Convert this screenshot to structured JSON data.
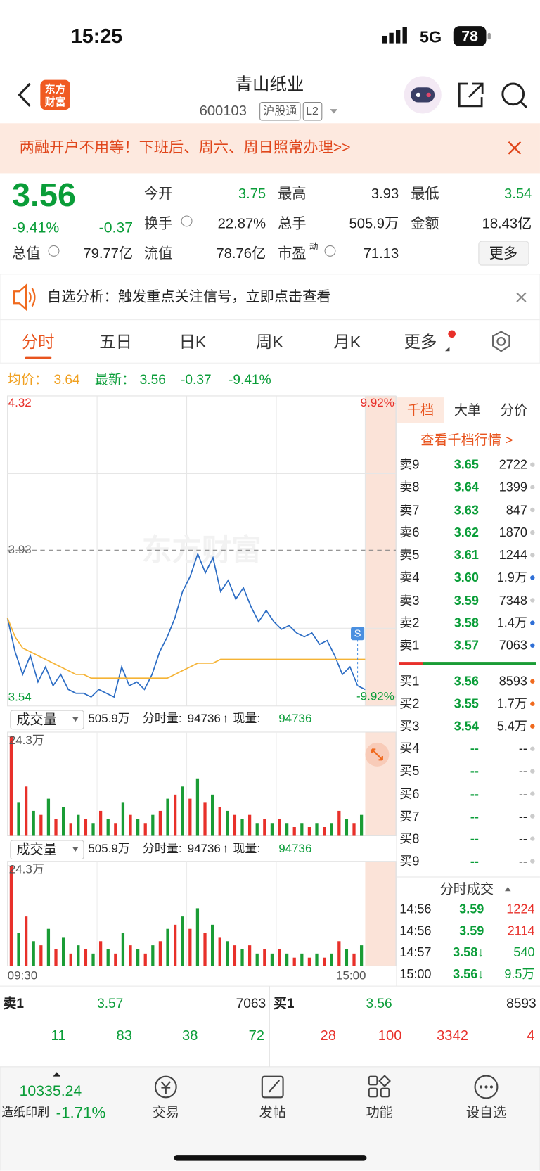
{
  "status_bar": {
    "time": "15:25",
    "network": "5G",
    "battery": "78"
  },
  "header": {
    "logo": [
      "东方",
      "财富"
    ],
    "title": "青山纸业",
    "code": "600103",
    "tags": [
      "沪股通",
      "L2"
    ]
  },
  "banner": {
    "text": "两融开户不用等！下班后、周六、周日照常办理>>"
  },
  "quote": {
    "price": "3.56",
    "change_pct": "-9.41%",
    "change": "-0.37",
    "fields": [
      {
        "label": "今开",
        "value": "3.75",
        "color": "#0a9d38"
      },
      {
        "label": "最高",
        "value": "3.93",
        "color": "#222222"
      },
      {
        "label": "最低",
        "value": "3.54",
        "color": "#0a9d38"
      },
      {
        "label": "换手",
        "value": "22.87%",
        "color": "#222222"
      },
      {
        "label": "总手",
        "value": "505.9万",
        "color": "#222222"
      },
      {
        "label": "金额",
        "value": "18.43亿",
        "color": "#222222"
      },
      {
        "label": "总值",
        "value": "79.77亿",
        "color": "#222222"
      },
      {
        "label": "流值",
        "value": "78.76亿",
        "color": "#222222"
      },
      {
        "label": "市盈",
        "sup": "动",
        "value": "71.13",
        "color": "#222222"
      }
    ],
    "more": "更多"
  },
  "notice": {
    "text": "自选分析：触发重点关注信号，立即点击查看"
  },
  "tabs": [
    "分时",
    "五日",
    "日K",
    "周K",
    "月K",
    "更多"
  ],
  "legend": {
    "avg_label": "均价：",
    "avg": "3.64",
    "latest_label": "最新：",
    "latest": "3.56",
    "change": "-0.37",
    "change_pct": "-9.41%"
  },
  "chart_data": [
    {
      "type": "line",
      "watermark": "东方财富",
      "annotation": "S",
      "ylim": [
        3.54,
        4.32
      ],
      "yticks": [
        4.32,
        3.93,
        3.54
      ],
      "y2lim": [
        -9.92,
        9.92
      ],
      "y2ticks": [
        {
          "value": 9.92,
          "label": "9.92%"
        },
        {
          "value": -9.92,
          "label": "-9.92%"
        }
      ],
      "x_labels": [
        "09:30",
        "15:00"
      ],
      "series": [
        {
          "color": "#2b6cc4",
          "values": [
            3.75,
            3.66,
            3.6,
            3.65,
            3.58,
            3.62,
            3.57,
            3.6,
            3.56,
            3.55,
            3.55,
            3.54,
            3.56,
            3.55,
            3.54,
            3.62,
            3.57,
            3.58,
            3.56,
            3.6,
            3.66,
            3.7,
            3.75,
            3.82,
            3.86,
            3.92,
            3.87,
            3.91,
            3.82,
            3.85,
            3.8,
            3.83,
            3.78,
            3.74,
            3.77,
            3.74,
            3.72,
            3.73,
            3.71,
            3.7,
            3.71,
            3.68,
            3.69,
            3.65,
            3.6,
            3.62,
            3.57,
            3.56
          ]
        },
        {
          "color": "#f5b335",
          "values": [
            3.75,
            3.7,
            3.67,
            3.66,
            3.65,
            3.64,
            3.63,
            3.62,
            3.61,
            3.6,
            3.6,
            3.59,
            3.59,
            3.59,
            3.59,
            3.59,
            3.59,
            3.59,
            3.59,
            3.59,
            3.59,
            3.59,
            3.6,
            3.61,
            3.62,
            3.63,
            3.63,
            3.63,
            3.64,
            3.64,
            3.64,
            3.64,
            3.64,
            3.64,
            3.64,
            3.64,
            3.64,
            3.64,
            3.64,
            3.64,
            3.64,
            3.64,
            3.64,
            3.64,
            3.64,
            3.64,
            3.64,
            3.64
          ]
        }
      ]
    },
    {
      "type": "bar",
      "ylim": [
        0,
        24.3
      ],
      "yticks": [
        {
          "value": 24.3,
          "label": "24.3万"
        }
      ],
      "series": [
        {
          "color": "#e8302a",
          "values": [
            24.3,
            null,
            12,
            null,
            5,
            null,
            4,
            null,
            3,
            null,
            4,
            null,
            6,
            null,
            3,
            null,
            5,
            null,
            3,
            null,
            6,
            null,
            10,
            null,
            9,
            null,
            8,
            null,
            7,
            null,
            5,
            null,
            5,
            null,
            4,
            null,
            4,
            null,
            2,
            null,
            2,
            null,
            2,
            null,
            6,
            null,
            3,
            null
          ]
        },
        {
          "color": "#1a9c35",
          "values": [
            null,
            8,
            null,
            6,
            null,
            9,
            null,
            7,
            null,
            5,
            null,
            3,
            null,
            4,
            null,
            8,
            null,
            4,
            null,
            5,
            null,
            9,
            null,
            12,
            null,
            14,
            null,
            10,
            null,
            6,
            null,
            4,
            null,
            3,
            null,
            3,
            null,
            3,
            null,
            3,
            null,
            3,
            null,
            3,
            null,
            4,
            null,
            5
          ]
        }
      ]
    }
  ],
  "volume_header": {
    "label": "成交量",
    "total": "505.9万",
    "minute_label": "分时量:",
    "minute": "94736",
    "arrow": "↑",
    "current_label": "现量:",
    "current": "94736"
  },
  "order_book": {
    "tabs": [
      "千档",
      "大单",
      "分价"
    ],
    "link": "查看千档行情 >",
    "asks": [
      [
        "卖9",
        "3.65",
        "2722"
      ],
      [
        "卖8",
        "3.64",
        "1399"
      ],
      [
        "卖7",
        "3.63",
        "847"
      ],
      [
        "卖6",
        "3.62",
        "1870"
      ],
      [
        "卖5",
        "3.61",
        "1244"
      ],
      [
        "卖4",
        "3.60",
        "1.9万"
      ],
      [
        "卖3",
        "3.59",
        "7348"
      ],
      [
        "卖2",
        "3.58",
        "1.4万"
      ],
      [
        "卖1",
        "3.57",
        "7063"
      ]
    ],
    "ask_dots": [
      "#cccccc",
      "#cccccc",
      "#cccccc",
      "#cccccc",
      "#cccccc",
      "#2f6fd6",
      "#cccccc",
      "#2f6fd6",
      "#2f6fd6"
    ],
    "bids": [
      [
        "买1",
        "3.56",
        "8593"
      ],
      [
        "买2",
        "3.55",
        "1.7万"
      ],
      [
        "买3",
        "3.54",
        "5.4万"
      ],
      [
        "买4",
        "--",
        "--"
      ],
      [
        "买5",
        "--",
        "--"
      ],
      [
        "买6",
        "--",
        "--"
      ],
      [
        "买7",
        "--",
        "--"
      ],
      [
        "买8",
        "--",
        "--"
      ],
      [
        "买9",
        "--",
        "--"
      ]
    ],
    "bid_dots": [
      "#f06a1e",
      "#f06a1e",
      "#f06a1e",
      "#cccccc",
      "#cccccc",
      "#cccccc",
      "#cccccc",
      "#cccccc",
      "#cccccc"
    ]
  },
  "trades": {
    "title": "分时成交",
    "rows": [
      [
        "14:56",
        "3.59",
        "1224"
      ],
      [
        "14:56",
        "3.59",
        "2114"
      ],
      [
        "14:57",
        "3.58↓",
        "540"
      ],
      [
        "15:00",
        "3.56↓",
        "9.5万"
      ]
    ],
    "volume_colors": [
      "#e8302a",
      "#e8302a",
      "#0a9d38",
      "#0a9d38"
    ]
  },
  "depth": {
    "sell": [
      "卖1",
      "3.57",
      "7063"
    ],
    "buy": [
      "买1",
      "3.56",
      "8593"
    ],
    "sell_orders": [
      "11",
      "83",
      "38",
      "72"
    ],
    "buy_orders": [
      "28",
      "100",
      "3342",
      "4"
    ]
  },
  "bottom_bar": {
    "index_value": "10335.24",
    "index_name": "造纸印刷",
    "index_change": "-1.71%",
    "items": [
      "交易",
      "发帖",
      "功能",
      "设自选"
    ]
  }
}
